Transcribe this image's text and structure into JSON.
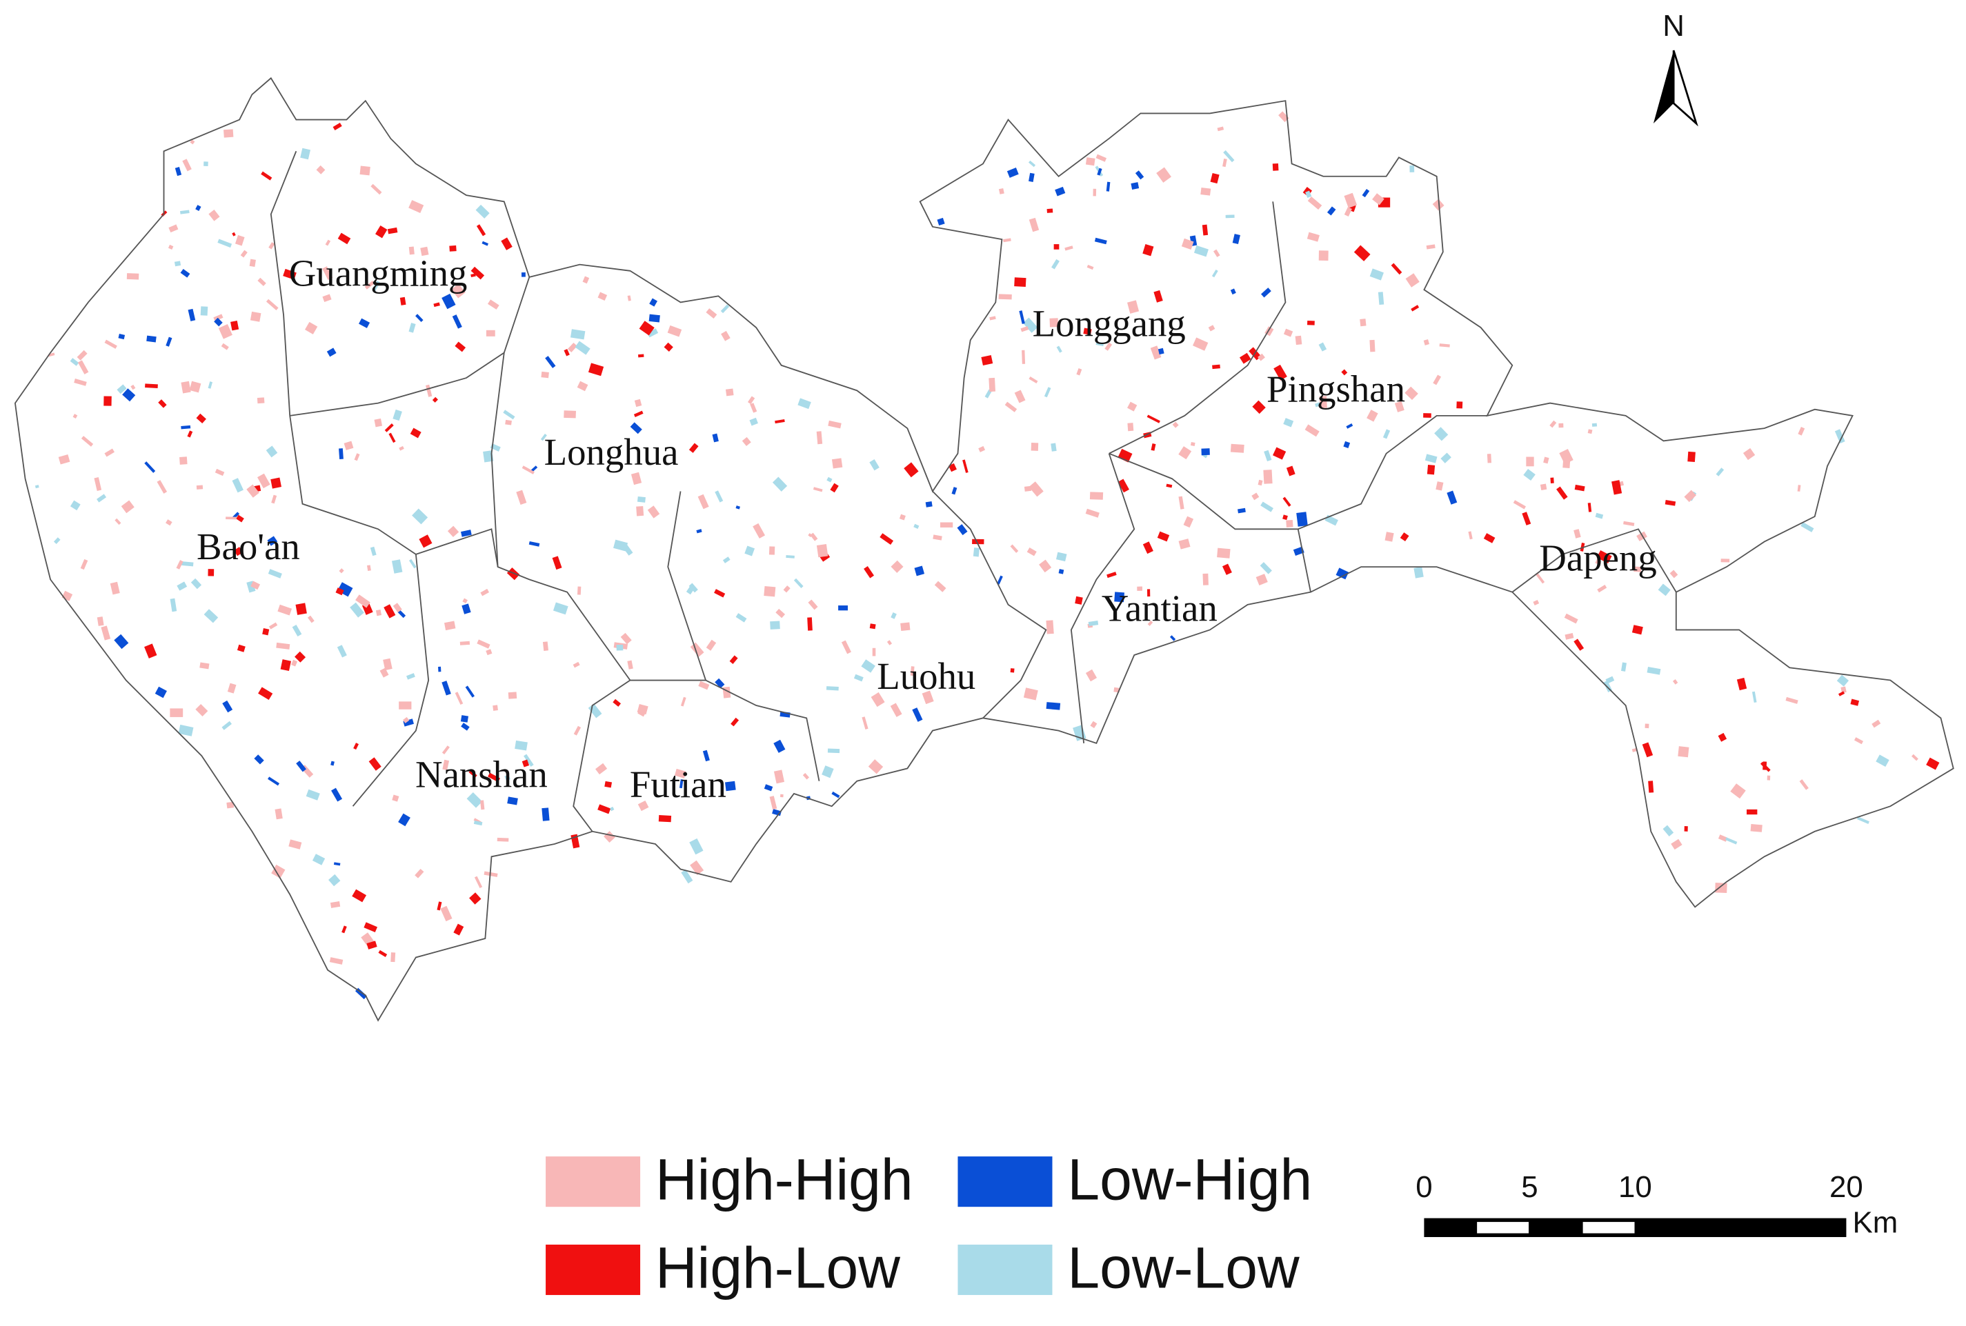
{
  "map": {
    "north": "N",
    "districts": [
      {
        "name": "Guangming"
      },
      {
        "name": "Longgang"
      },
      {
        "name": "Pingshan"
      },
      {
        "name": "Longhua"
      },
      {
        "name": "Bao'an"
      },
      {
        "name": "Dapeng"
      },
      {
        "name": "Yantian"
      },
      {
        "name": "Luohu"
      },
      {
        "name": "Nanshan"
      },
      {
        "name": "Futian"
      }
    ],
    "legend": [
      {
        "label": "High-High",
        "color": "#f8b7b7"
      },
      {
        "label": "Low-High",
        "color": "#0a4fd6"
      },
      {
        "label": "High-Low",
        "color": "#f01010"
      },
      {
        "label": "Low-Low",
        "color": "#a9dbe9"
      }
    ],
    "scale_bar": {
      "ticks": [
        0,
        5,
        10,
        20
      ],
      "unit": "Km"
    }
  }
}
